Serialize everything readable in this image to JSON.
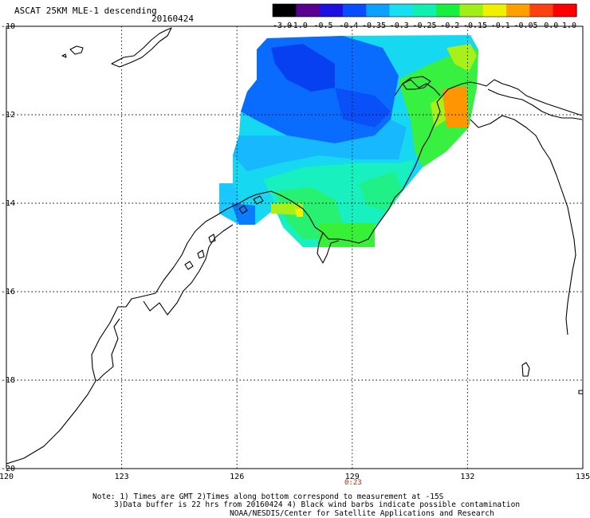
{
  "title": "ASCAT 25KM MLE-1 descending",
  "date": "20160424",
  "colorbar": {
    "labels": [
      "-3.0",
      "-1.0",
      "-0.5",
      "-0.4",
      "-0.35",
      "-0.3",
      "-0.25",
      "-0.2",
      "-0.15",
      "-0.1",
      "-0.05",
      "0.0",
      "1.0"
    ],
    "colors": [
      "#000000",
      "#5a0090",
      "#1e10e0",
      "#0a4cff",
      "#0ca0ff",
      "#18e0f0",
      "#10f0b0",
      "#18f040",
      "#a0f018",
      "#f0f000",
      "#ffa000",
      "#ff4010",
      "#ff0000"
    ]
  },
  "map": {
    "lon_range": [
      120,
      135
    ],
    "lat_range": [
      -10,
      -20
    ],
    "lon_ticks": [
      "120",
      "123",
      "126",
      "129",
      "132",
      "135"
    ],
    "lat_ticks": [
      "-10",
      "-12",
      "-14",
      "-16",
      "-18",
      "-20"
    ],
    "time_label": "0:23"
  },
  "notes": {
    "line1": "Note: 1) Times are GMT 2)Times along bottom correspond to measurement at -15S",
    "line2": "3)Data buffer is 22 hrs from 20160424 4) Black wind barbs indicate possible contamination",
    "line3": "NOAA/NESDIS/Center for Satellite Applications and Research"
  }
}
